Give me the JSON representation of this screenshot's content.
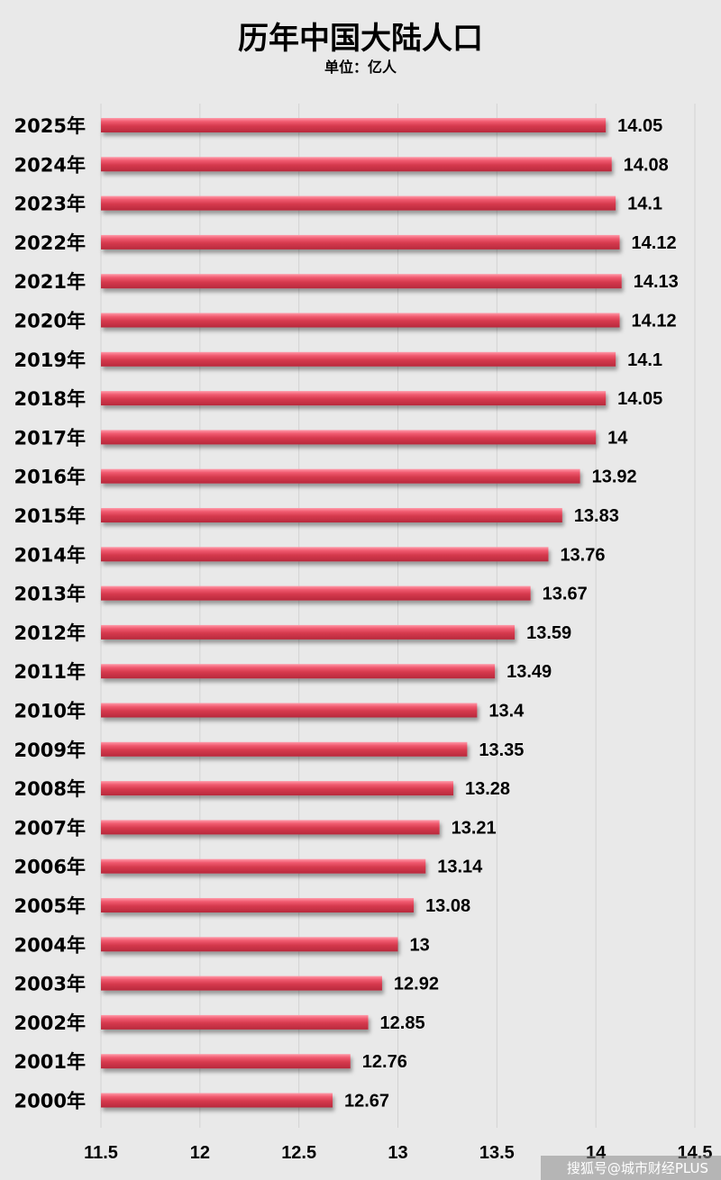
{
  "chart_data": {
    "type": "bar",
    "orientation": "horizontal",
    "title": "历年中国大陆人口",
    "subtitle": "单位：亿人",
    "categories": [
      "2025年",
      "2024年",
      "2023年",
      "2022年",
      "2021年",
      "2020年",
      "2019年",
      "2018年",
      "2017年",
      "2016年",
      "2015年",
      "2014年",
      "2013年",
      "2012年",
      "2011年",
      "2010年",
      "2009年",
      "2008年",
      "2007年",
      "2006年",
      "2005年",
      "2004年",
      "2003年",
      "2002年",
      "2001年",
      "2000年"
    ],
    "values": [
      14.05,
      14.08,
      14.1,
      14.12,
      14.13,
      14.12,
      14.1,
      14.05,
      14,
      13.92,
      13.83,
      13.76,
      13.67,
      13.59,
      13.49,
      13.4,
      13.35,
      13.28,
      13.21,
      13.14,
      13.08,
      13,
      12.92,
      12.85,
      12.76,
      12.67
    ],
    "value_labels": [
      "14.05",
      "14.08",
      "14.1",
      "14.12",
      "14.13",
      "14.12",
      "14.1",
      "14.05",
      "14",
      "13.92",
      "13.83",
      "13.76",
      "13.67",
      "13.59",
      "13.49",
      "13.4",
      "13.35",
      "13.28",
      "13.21",
      "13.14",
      "13.08",
      "13",
      "12.92",
      "12.85",
      "12.76",
      "12.67"
    ],
    "xlim": [
      11.5,
      14.5
    ],
    "xticks": [
      11.5,
      12,
      12.5,
      13,
      13.5,
      14,
      14.5
    ],
    "xtick_labels": [
      "11.5",
      "12",
      "12.5",
      "13",
      "13.5",
      "14",
      "14.5"
    ],
    "grid": true,
    "legend": "none",
    "bar_color": "#d63a4e"
  },
  "watermark": "搜狐号@城市财经PLUS"
}
